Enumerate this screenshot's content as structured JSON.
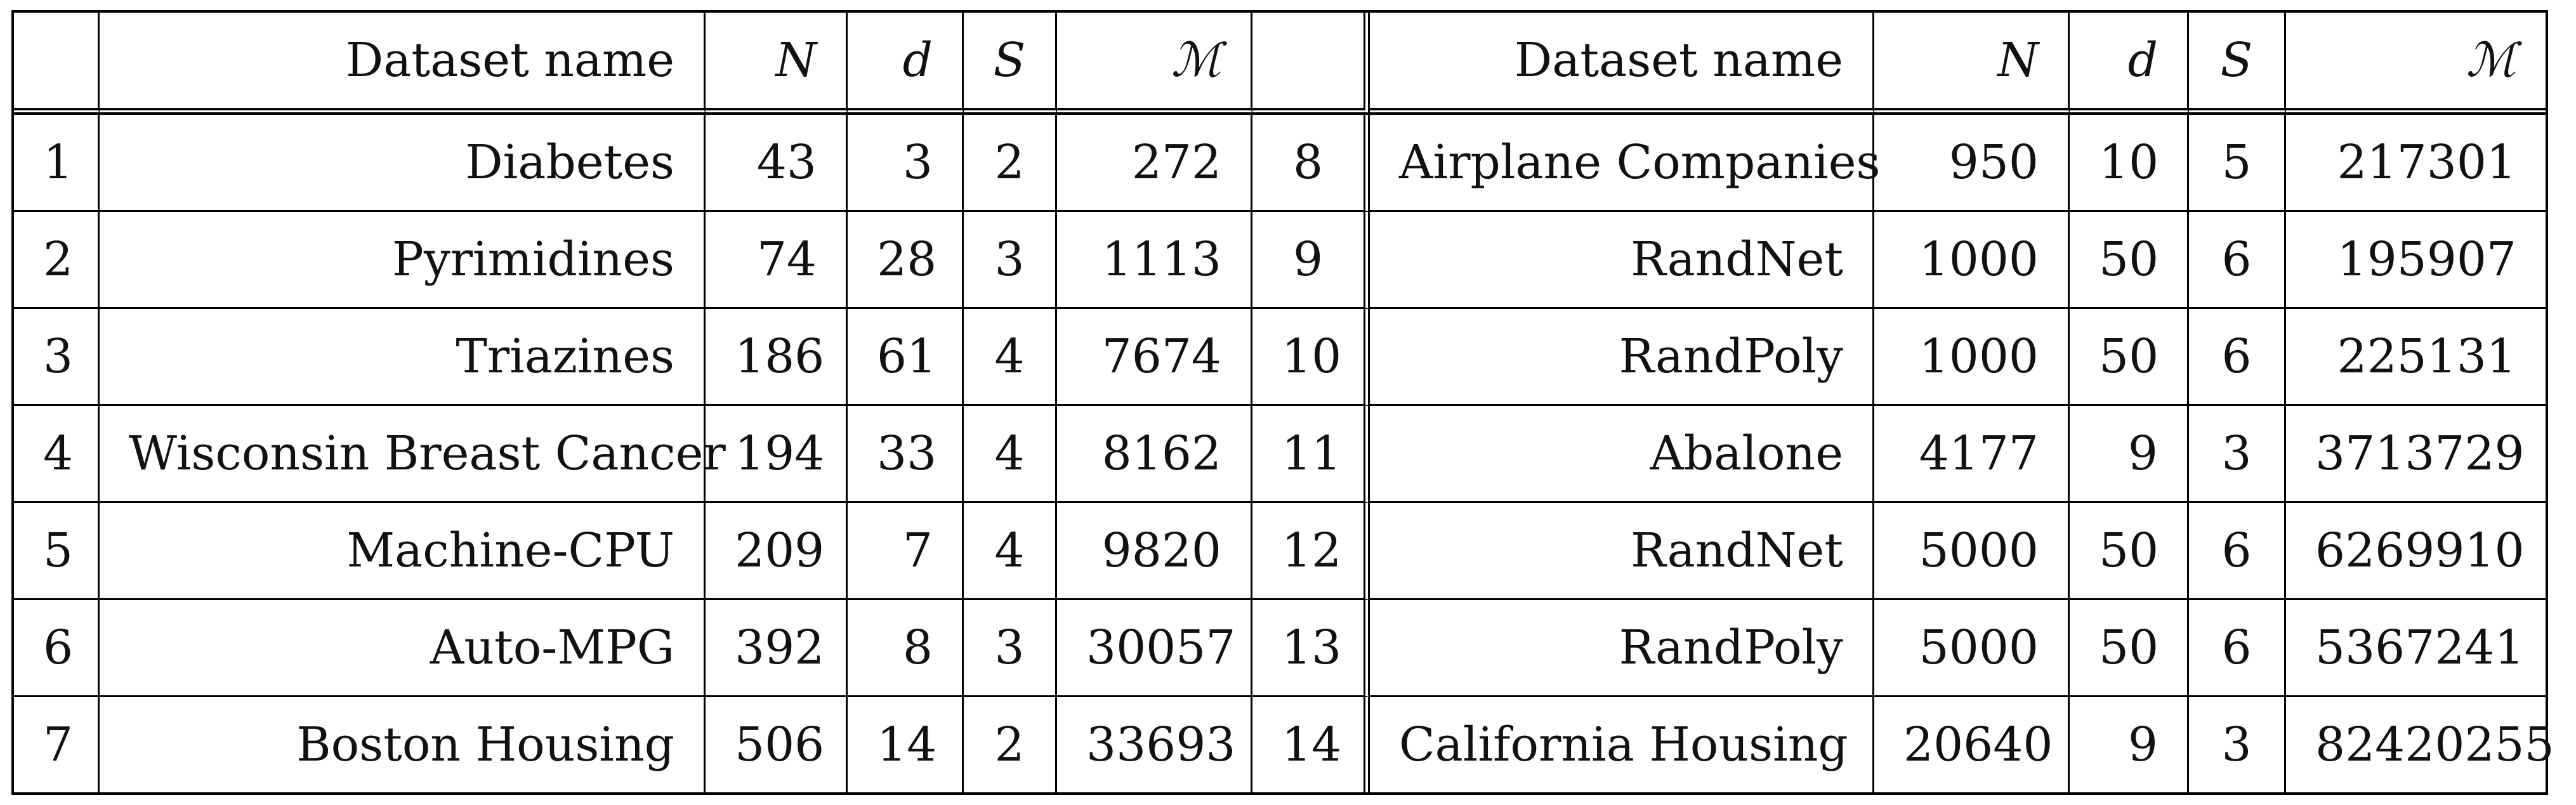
{
  "headers": {
    "index": "",
    "name": "Dataset name",
    "N": "N",
    "d": "d",
    "S": "S",
    "M": "ℳ"
  },
  "rows": [
    {
      "i": "1",
      "name": "Diabetes",
      "N": "43",
      "d": "3",
      "S": "2",
      "M": "272"
    },
    {
      "i": "2",
      "name": "Pyrimidines",
      "N": "74",
      "d": "28",
      "S": "3",
      "M": "1113"
    },
    {
      "i": "3",
      "name": "Triazines",
      "N": "186",
      "d": "61",
      "S": "4",
      "M": "7674"
    },
    {
      "i": "4",
      "name": "Wisconsin Breast Cancer",
      "N": "194",
      "d": "33",
      "S": "4",
      "M": "8162"
    },
    {
      "i": "5",
      "name": "Machine-CPU",
      "N": "209",
      "d": "7",
      "S": "4",
      "M": "9820"
    },
    {
      "i": "6",
      "name": "Auto-MPG",
      "N": "392",
      "d": "8",
      "S": "3",
      "M": "30057"
    },
    {
      "i": "7",
      "name": "Boston Housing",
      "N": "506",
      "d": "14",
      "S": "2",
      "M": "33693"
    },
    {
      "i": "8",
      "name": "Airplane Companies",
      "N": "950",
      "d": "10",
      "S": "5",
      "M": "217301"
    },
    {
      "i": "9",
      "name": "RandNet",
      "N": "1000",
      "d": "50",
      "S": "6",
      "M": "195907"
    },
    {
      "i": "10",
      "name": "RandPoly",
      "N": "1000",
      "d": "50",
      "S": "6",
      "M": "225131"
    },
    {
      "i": "11",
      "name": "Abalone",
      "N": "4177",
      "d": "9",
      "S": "3",
      "M": "3713729"
    },
    {
      "i": "12",
      "name": "RandNet",
      "N": "5000",
      "d": "50",
      "S": "6",
      "M": "6269910"
    },
    {
      "i": "13",
      "name": "RandPoly",
      "N": "5000",
      "d": "50",
      "S": "6",
      "M": "5367241"
    },
    {
      "i": "14",
      "name": "California Housing",
      "N": "20640",
      "d": "9",
      "S": "3",
      "M": "82420255"
    }
  ]
}
